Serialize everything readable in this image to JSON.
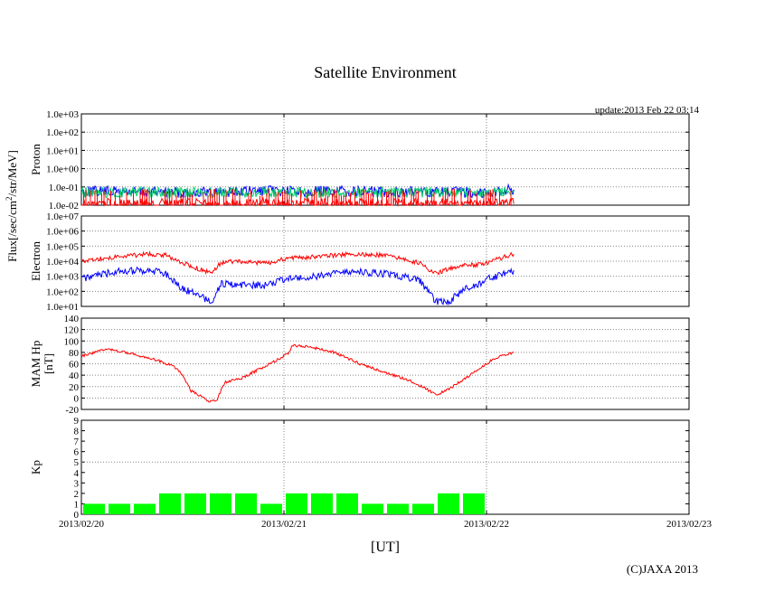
{
  "title": "Satellite Environment",
  "update": "update:2013 Feb 22 03:14",
  "copyright": "(C)JAXA 2013",
  "xlabel": "[UT]",
  "flux_label": "Flux[/sec/cm",
  "flux_label_sup": "2",
  "flux_label_tail": "/str/MeV]",
  "chart_data": [
    {
      "type": "line",
      "panel": "proton",
      "ylabel": "Proton",
      "yscale": "log",
      "ylim": [
        0.01,
        1000
      ],
      "yticks": [
        "1.0e-02",
        "1.0e-01",
        "1.0e+00",
        "1.0e+01",
        "1.0e+02",
        "1.0e+03"
      ],
      "xlim": [
        "2013/02/20 00:00",
        "2013/02/23 00:00"
      ],
      "grid": true,
      "series": [
        {
          "color": "#0000ff",
          "x": [
            "2013/02/20 00:00",
            "2013/02/20 12:00",
            "2013/02/21 00:00",
            "2013/02/21 12:00",
            "2013/02/22 00:00",
            "2013/02/22 03:14"
          ],
          "values": [
            0.06,
            0.05,
            0.06,
            0.055,
            0.05,
            0.07
          ]
        },
        {
          "color": "#00cc66",
          "x": [
            "2013/02/20 00:00",
            "2013/02/20 12:00",
            "2013/02/21 00:00",
            "2013/02/21 12:00",
            "2013/02/22 00:00",
            "2013/02/22 03:14"
          ],
          "values": [
            0.05,
            0.05,
            0.05,
            0.05,
            0.05,
            0.05
          ]
        },
        {
          "color": "#ff0000",
          "x": [
            "2013/02/20 00:00",
            "2013/02/21 00:00",
            "2013/02/22 00:00",
            "2013/02/22 03:14"
          ],
          "values": [
            0.012,
            0.012,
            0.012,
            0.012
          ]
        }
      ]
    },
    {
      "type": "line",
      "panel": "electron",
      "ylabel": "Electron",
      "yscale": "log",
      "ylim": [
        10,
        10000000
      ],
      "yticks": [
        "1.0e+01",
        "1.0e+02",
        "1.0e+03",
        "1.0e+04",
        "1.0e+05",
        "1.0e+06",
        "1.0e+07"
      ],
      "xlim": [
        "2013/02/20 00:00",
        "2013/02/23 00:00"
      ],
      "grid": true,
      "series": [
        {
          "color": "#ff0000",
          "x": [
            "2013/02/20 00:00",
            "2013/02/20 04:00",
            "2013/02/20 08:00",
            "2013/02/20 10:00",
            "2013/02/20 12:00",
            "2013/02/20 14:00",
            "2013/02/20 15:30",
            "2013/02/20 16:30",
            "2013/02/20 18:00",
            "2013/02/20 22:00",
            "2013/02/21 00:00",
            "2013/02/21 04:00",
            "2013/02/21 08:00",
            "2013/02/21 12:00",
            "2013/02/21 16:00",
            "2013/02/21 18:00",
            "2013/02/21 19:30",
            "2013/02/21 21:00",
            "2013/02/21 23:00",
            "2013/02/22 00:00",
            "2013/02/22 03:14"
          ],
          "values": [
            10000,
            20000,
            30000,
            25000,
            8000,
            3000,
            1500,
            8000,
            10000,
            7000,
            15000,
            20000,
            30000,
            25000,
            8000,
            1500,
            3000,
            5000,
            6000,
            8000,
            30000
          ]
        },
        {
          "color": "#0000ff",
          "x": [
            "2013/02/20 00:00",
            "2013/02/20 04:00",
            "2013/02/20 08:00",
            "2013/02/20 10:00",
            "2013/02/20 12:00",
            "2013/02/20 14:00",
            "2013/02/20 15:30",
            "2013/02/20 16:30",
            "2013/02/20 18:00",
            "2013/02/20 22:00",
            "2013/02/21 00:00",
            "2013/02/21 04:00",
            "2013/02/21 08:00",
            "2013/02/21 12:00",
            "2013/02/21 16:00",
            "2013/02/21 18:00",
            "2013/02/21 19:30",
            "2013/02/21 21:00",
            "2013/02/21 23:00",
            "2013/02/22 00:00",
            "2013/02/22 03:14"
          ],
          "values": [
            700,
            2000,
            2500,
            1500,
            150,
            50,
            20,
            300,
            300,
            250,
            600,
            1000,
            2000,
            1500,
            600,
            20,
            20,
            100,
            300,
            600,
            2500
          ]
        }
      ]
    },
    {
      "type": "line",
      "panel": "mam-hp",
      "ylabel": "MAM Hp",
      "ylabel2": "[nT]",
      "ylim": [
        -20,
        140
      ],
      "yticks": [
        "-20",
        "0",
        "20",
        "40",
        "60",
        "80",
        "100",
        "120",
        "140"
      ],
      "xlim": [
        "2013/02/20 00:00",
        "2013/02/23 00:00"
      ],
      "grid": true,
      "series": [
        {
          "color": "#ff0000",
          "x": [
            "2013/02/20 00:00",
            "2013/02/20 03:00",
            "2013/02/20 06:00",
            "2013/02/20 09:00",
            "2013/02/20 11:00",
            "2013/02/20 12:00",
            "2013/02/20 13:00",
            "2013/02/20 14:00",
            "2013/02/20 15:00",
            "2013/02/20 16:00",
            "2013/02/20 17:00",
            "2013/02/20 19:00",
            "2013/02/20 21:00",
            "2013/02/20 23:00",
            "2013/02/21 00:30",
            "2013/02/21 01:00",
            "2013/02/21 03:00",
            "2013/02/21 06:00",
            "2013/02/21 09:00",
            "2013/02/21 12:00",
            "2013/02/21 15:00",
            "2013/02/21 17:00",
            "2013/02/21 18:00",
            "2013/02/21 20:00",
            "2013/02/21 23:00",
            "2013/02/22 01:00",
            "2013/02/22 03:14"
          ],
          "values": [
            73,
            86,
            78,
            66,
            55,
            40,
            12,
            5,
            -5,
            -5,
            28,
            35,
            50,
            65,
            78,
            92,
            90,
            80,
            60,
            45,
            30,
            15,
            5,
            20,
            50,
            70,
            80
          ]
        }
      ]
    },
    {
      "type": "bar",
      "panel": "kp",
      "ylabel": "Kp",
      "ylim": [
        0,
        9
      ],
      "yticks": [
        "0",
        "1",
        "2",
        "3",
        "4",
        "5",
        "6",
        "7",
        "8",
        "9"
      ],
      "reference_line": 5,
      "xlim": [
        "2013/02/20 00:00",
        "2013/02/23 00:00"
      ],
      "bar_color": "#00ff00",
      "categories": [
        "2013/02/20 00-03",
        "2013/02/20 03-06",
        "2013/02/20 06-09",
        "2013/02/20 09-12",
        "2013/02/20 12-15",
        "2013/02/20 15-18",
        "2013/02/20 18-21",
        "2013/02/20 21-24",
        "2013/02/21 00-03",
        "2013/02/21 03-06",
        "2013/02/21 06-09",
        "2013/02/21 09-12",
        "2013/02/21 12-15",
        "2013/02/21 15-18",
        "2013/02/21 18-21",
        "2013/02/21 21-24"
      ],
      "values": [
        1,
        1,
        1,
        2,
        2,
        2,
        2,
        1,
        2,
        2,
        2,
        1,
        1,
        1,
        2,
        2
      ]
    }
  ],
  "x_ticks": [
    "2013/02/20",
    "2013/02/21",
    "2013/02/22",
    "2013/02/23"
  ]
}
